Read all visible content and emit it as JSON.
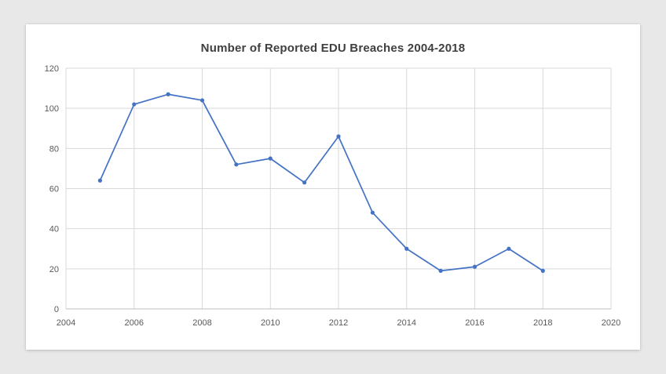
{
  "page": {
    "background_color": "#e8e8e8",
    "card_color": "#ffffff"
  },
  "chart_data": {
    "type": "line",
    "title": "Number of Reported EDU Breaches 2004-2018",
    "x": [
      2005,
      2006,
      2007,
      2008,
      2009,
      2010,
      2011,
      2012,
      2013,
      2014,
      2015,
      2016,
      2017,
      2018
    ],
    "values": [
      64,
      102,
      107,
      104,
      72,
      75,
      63,
      86,
      48,
      30,
      19,
      21,
      30,
      19
    ],
    "xlabel": "",
    "ylabel": "",
    "xlim": [
      2004,
      2020
    ],
    "ylim": [
      0,
      120
    ],
    "x_ticks": [
      2004,
      2006,
      2008,
      2010,
      2012,
      2014,
      2016,
      2018,
      2020
    ],
    "y_ticks": [
      0,
      20,
      40,
      60,
      80,
      100,
      120
    ],
    "grid": true,
    "legend": false,
    "colors": {
      "series": "#4472C4",
      "gridline": "#D9D9D9",
      "axis_line": "#BFBFBF",
      "title_text": "#404040",
      "tick_text": "#595959"
    },
    "marker": "circle"
  }
}
